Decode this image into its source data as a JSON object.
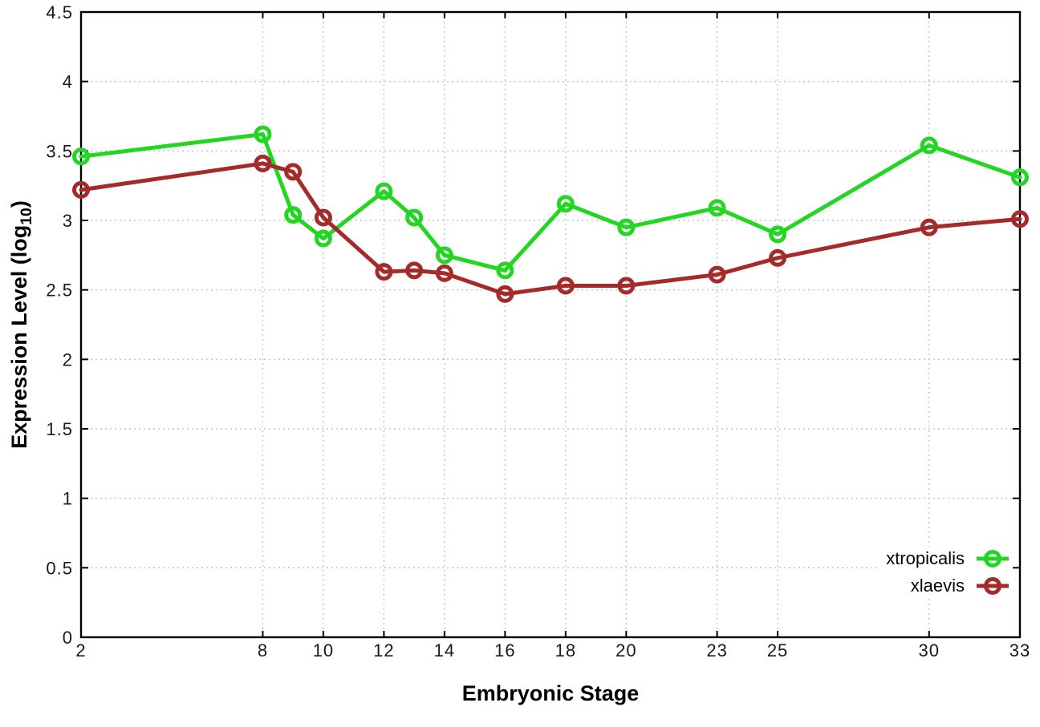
{
  "chart_data": {
    "type": "line",
    "title": "",
    "xlabel": "Embryonic Stage",
    "ylabel": "Expression Level (log10)",
    "ylabel_parts": {
      "pre": "Expression Level (log",
      "sub": "10",
      "post": ")"
    },
    "x": [
      2,
      8,
      9,
      10,
      12,
      13,
      14,
      16,
      18,
      20,
      23,
      25,
      30,
      33
    ],
    "series": [
      {
        "name": "xtropicalis",
        "color": "#22d622",
        "values": [
          3.46,
          3.62,
          3.04,
          2.87,
          3.21,
          3.02,
          2.75,
          2.64,
          3.12,
          2.95,
          3.09,
          2.9,
          3.54,
          3.31
        ]
      },
      {
        "name": "xlaevis",
        "color": "#a52a2a",
        "values": [
          3.22,
          3.41,
          3.35,
          3.02,
          2.63,
          2.64,
          2.62,
          2.47,
          2.53,
          2.53,
          2.61,
          2.73,
          2.95,
          3.01
        ]
      }
    ],
    "xticks": [
      2,
      8,
      10,
      12,
      14,
      16,
      18,
      20,
      23,
      25,
      30,
      33
    ],
    "xtick_labels": [
      "2",
      "8",
      "10",
      "12",
      "14",
      "16",
      "18",
      "20",
      "23",
      "25",
      "30",
      "33"
    ],
    "yticks": [
      0,
      0.5,
      1,
      1.5,
      2,
      2.5,
      3,
      3.5,
      4,
      4.5
    ],
    "ytick_labels": [
      "0",
      "0.5",
      "1",
      "1.5",
      "2",
      "2.5",
      "3",
      "3.5",
      "4",
      "4.5"
    ],
    "xlim": [
      2,
      33
    ],
    "ylim": [
      0,
      4.5
    ],
    "grid": true,
    "grid_color": "#c4c4c4",
    "border_color": "#000000",
    "marker": "open-circle",
    "legend_position": "inside-bottom-right"
  }
}
